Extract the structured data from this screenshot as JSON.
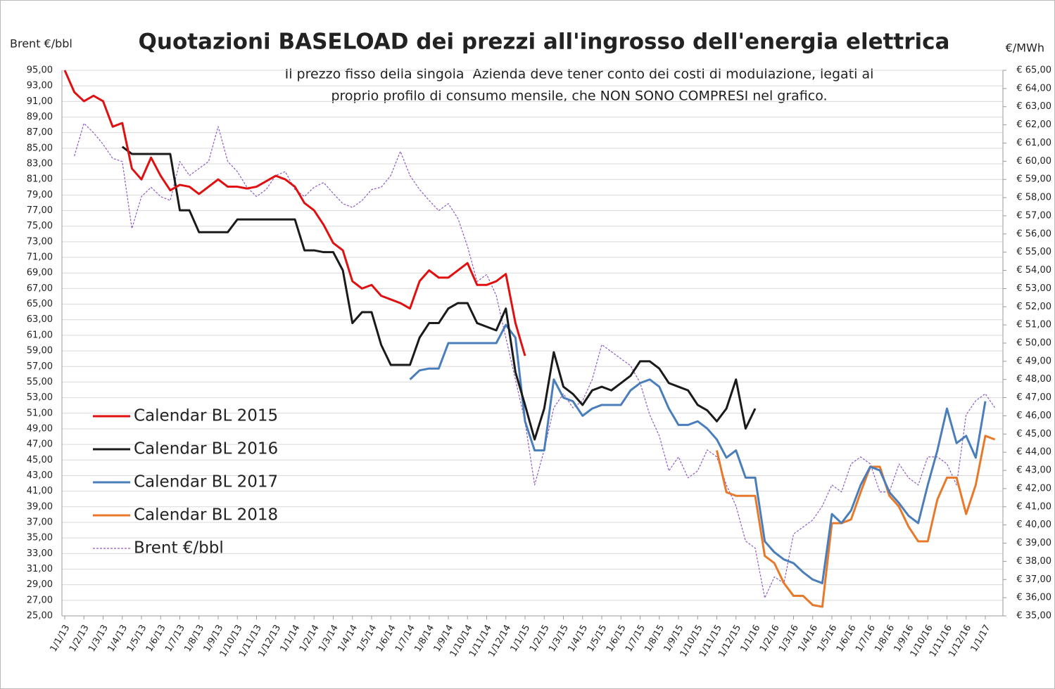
{
  "chart_data": {
    "type": "line",
    "title": "Quotazioni BASELOAD dei prezzi all'ingrosso dell'energia elettrica",
    "annotation": [
      "Il prezzo fisso della singola  Azienda deve tener conto dei costi di modulazione, legati al",
      "proprio profilo di consumo mensile, che NON SONO COMPRESI nel grafico."
    ],
    "y_label": "Brent €/bbl",
    "y2_label": "€/MWh",
    "categories": [
      "1/1/13",
      null,
      "1/2/13",
      null,
      "1/3/13",
      null,
      "1/4/13",
      null,
      "1/5/13",
      null,
      "1/6/13",
      null,
      "1/7/13",
      null,
      "1/8/13",
      null,
      "1/9/13",
      null,
      "1/10/13",
      null,
      "1/11/13",
      null,
      "1/12/13",
      null,
      "1/1/14",
      null,
      "1/2/14",
      null,
      "1/3/14",
      null,
      "1/4/14",
      null,
      "1/5/14",
      null,
      "1/6/14",
      null,
      "1/7/14",
      null,
      "1/8/14",
      null,
      "1/9/14",
      null,
      "1/10/14",
      null,
      "1/11/14",
      null,
      "1/12/14",
      null,
      "1/1/15",
      null,
      "1/2/15",
      null,
      "1/3/15",
      null,
      "1/4/15",
      null,
      "1/5/15",
      null,
      "1/6/15",
      null,
      "1/7/15",
      null,
      "1/8/15",
      null,
      "1/9/15",
      null,
      "1/10/15",
      null,
      "1/11/15",
      null,
      "1/12/15",
      null,
      "1/1/16",
      null,
      "1/2/16",
      null,
      "1/3/16",
      null,
      "1/4/16",
      null,
      "1/5/16",
      null,
      "1/6/16",
      null,
      "1/7/16",
      null,
      "1/8/16",
      null,
      "1/9/16",
      null,
      "1/10/16",
      null,
      "1/11/16",
      null,
      "1/12/16",
      null,
      "1/1/17",
      null
    ],
    "series": [
      {
        "name": "Calendar BL 2015",
        "color": "#e01010",
        "axis": "y2",
        "style": "solid",
        "values": [
          65,
          63.8,
          63.3,
          63.6,
          63.3,
          61.9,
          62.1,
          59.6,
          59,
          60.2,
          59.2,
          58.4,
          58.7,
          58.6,
          58.2,
          58.6,
          59,
          58.6,
          58.6,
          58.5,
          58.6,
          58.9,
          59.2,
          59,
          58.6,
          57.7,
          57.3,
          56.5,
          55.5,
          55.1,
          53.4,
          53,
          53.2,
          52.6,
          52.4,
          52.2,
          51.9,
          53.4,
          54,
          53.6,
          53.6,
          54,
          54.4,
          53.2,
          53.2,
          53.4,
          53.8,
          51.1,
          49.3,
          null,
          null,
          null,
          null,
          null,
          null,
          null,
          null,
          null,
          null,
          null,
          null,
          null,
          null,
          null,
          null,
          null,
          null,
          null,
          null,
          null,
          null,
          null,
          null,
          null,
          null,
          null,
          null,
          null,
          null,
          null,
          null,
          null,
          null,
          null,
          null,
          null,
          null,
          null,
          null,
          null,
          null,
          null,
          null,
          null,
          null,
          null,
          null,
          null
        ]
      },
      {
        "name": "Calendar BL 2016",
        "color": "#1a1a1a",
        "axis": "y2",
        "style": "solid",
        "values": [
          null,
          null,
          null,
          null,
          null,
          null,
          60.8,
          60.4,
          60.4,
          60.4,
          60.4,
          60.4,
          57.3,
          57.3,
          56.1,
          56.1,
          56.1,
          56.1,
          56.8,
          56.8,
          56.8,
          56.8,
          56.8,
          56.8,
          56.8,
          55.1,
          55.1,
          55,
          55,
          54,
          51.1,
          51.7,
          51.7,
          49.9,
          48.8,
          48.8,
          48.8,
          50.3,
          51.1,
          51.1,
          51.9,
          52.2,
          52.2,
          51.1,
          50.9,
          50.7,
          51.9,
          48.4,
          46.6,
          44.7,
          46.4,
          49.5,
          47.6,
          47.2,
          46.6,
          47.4,
          47.6,
          47.4,
          47.8,
          48.2,
          49,
          49,
          48.6,
          47.8,
          47.6,
          47.4,
          46.6,
          46.3,
          45.7,
          46.4,
          48,
          45.3,
          46.4,
          null,
          null,
          null,
          null,
          null,
          null,
          null,
          null,
          null,
          null,
          null,
          null,
          null,
          null,
          null,
          null,
          null,
          null,
          null,
          null,
          null,
          null,
          null,
          null,
          null
        ]
      },
      {
        "name": "Calendar BL 2017",
        "color": "#4a7ebb",
        "axis": "y2",
        "style": "solid",
        "values": [
          null,
          null,
          null,
          null,
          null,
          null,
          null,
          null,
          null,
          null,
          null,
          null,
          null,
          null,
          null,
          null,
          null,
          null,
          null,
          null,
          null,
          null,
          null,
          null,
          null,
          null,
          null,
          null,
          null,
          null,
          null,
          null,
          null,
          null,
          null,
          null,
          48,
          48.5,
          48.6,
          48.6,
          50,
          50,
          50,
          50,
          50,
          50,
          51,
          50.3,
          45.7,
          44.1,
          44.1,
          48,
          47,
          46.8,
          46,
          46.4,
          46.6,
          46.6,
          46.6,
          47.4,
          47.8,
          48,
          47.6,
          46.4,
          45.5,
          45.5,
          45.7,
          45.3,
          44.7,
          43.7,
          44.1,
          42.6,
          42.6,
          39.1,
          38.5,
          38.1,
          37.9,
          37.4,
          37,
          36.8,
          40.6,
          40.1,
          40.8,
          42.2,
          43.2,
          43,
          41.8,
          41.2,
          40.5,
          40.1,
          42.2,
          44.1,
          46.4,
          44.5,
          44.9,
          43.7,
          46.8,
          null
        ]
      },
      {
        "name": "Calendar BL 2018",
        "color": "#e8792a",
        "axis": "y2",
        "style": "solid",
        "values": [
          null,
          null,
          null,
          null,
          null,
          null,
          null,
          null,
          null,
          null,
          null,
          null,
          null,
          null,
          null,
          null,
          null,
          null,
          null,
          null,
          null,
          null,
          null,
          null,
          null,
          null,
          null,
          null,
          null,
          null,
          null,
          null,
          null,
          null,
          null,
          null,
          null,
          null,
          null,
          null,
          null,
          null,
          null,
          null,
          null,
          null,
          null,
          null,
          null,
          null,
          null,
          null,
          null,
          null,
          null,
          null,
          null,
          null,
          null,
          null,
          null,
          null,
          null,
          null,
          null,
          null,
          null,
          null,
          44.1,
          41.8,
          41.6,
          41.6,
          41.6,
          38.3,
          37.9,
          36.8,
          36.1,
          36.1,
          35.6,
          35.5,
          40.1,
          40.1,
          40.3,
          41.8,
          43.2,
          43.2,
          41.6,
          41,
          39.9,
          39.1,
          39.1,
          41.4,
          42.6,
          42.6,
          40.6,
          42.2,
          44.9,
          44.7
        ]
      },
      {
        "name": "Brent €/bbl",
        "color": "#8e5bc4",
        "axis": "y",
        "style": "dashed",
        "values": [
          null,
          84,
          88.2,
          87,
          85.5,
          83.7,
          83.3,
          74.7,
          78.8,
          80,
          78.8,
          78.3,
          83.3,
          81.5,
          82.4,
          83.3,
          87.8,
          83.3,
          82,
          80,
          78.8,
          79.7,
          81.5,
          82,
          79.7,
          78.8,
          80,
          80.6,
          79.2,
          77.9,
          77.4,
          78.3,
          79.7,
          80,
          81.5,
          84.6,
          81.5,
          79.7,
          78.3,
          77,
          77.9,
          76,
          72.4,
          67.9,
          68.8,
          66.1,
          60.7,
          55.3,
          49.9,
          41.8,
          46.3,
          51.7,
          53.5,
          51.7,
          52.6,
          55.3,
          59.8,
          58.9,
          58,
          57.1,
          54.9,
          50.8,
          48.1,
          43.6,
          45.4,
          42.7,
          43.6,
          46.3,
          45.4,
          41.8,
          39.1,
          34.6,
          33.7,
          27.3,
          30,
          29.2,
          35.5,
          36.4,
          37.3,
          39.1,
          41.8,
          40.9,
          44.5,
          45.4,
          44.5,
          40.9,
          40.9,
          44.5,
          42.7,
          41.8,
          45.4,
          45.4,
          44.5,
          41.8,
          50.8,
          52.6,
          53.5,
          51.7
        ]
      }
    ],
    "ylim": [
      25,
      95
    ],
    "yticks": [
      {
        "value": 25,
        "label": "25,00"
      },
      {
        "value": 27,
        "label": "27,00"
      },
      {
        "value": 29,
        "label": "29,00"
      },
      {
        "value": 31,
        "label": "31,00"
      },
      {
        "value": 33,
        "label": "33,00"
      },
      {
        "value": 35,
        "label": "35,00"
      },
      {
        "value": 37,
        "label": "37,00"
      },
      {
        "value": 39,
        "label": "39,00"
      },
      {
        "value": 41,
        "label": "41,00"
      },
      {
        "value": 43,
        "label": "43,00"
      },
      {
        "value": 45,
        "label": "45,00"
      },
      {
        "value": 47,
        "label": "47,00"
      },
      {
        "value": 49,
        "label": "49,00"
      },
      {
        "value": 51,
        "label": "51,00"
      },
      {
        "value": 53,
        "label": "53,00"
      },
      {
        "value": 55,
        "label": "55,00"
      },
      {
        "value": 57,
        "label": "57,00"
      },
      {
        "value": 59,
        "label": "59,00"
      },
      {
        "value": 61,
        "label": "61,00"
      },
      {
        "value": 63,
        "label": "63,00"
      },
      {
        "value": 65,
        "label": "65,00"
      },
      {
        "value": 67,
        "label": "67,00"
      },
      {
        "value": 69,
        "label": "69,00"
      },
      {
        "value": 71,
        "label": "71,00"
      },
      {
        "value": 73,
        "label": "73,00"
      },
      {
        "value": 75,
        "label": "75,00"
      },
      {
        "value": 77,
        "label": "77,00"
      },
      {
        "value": 79,
        "label": "79,00"
      },
      {
        "value": 81,
        "label": "81,00"
      },
      {
        "value": 83,
        "label": "83,00"
      },
      {
        "value": 85,
        "label": "85,00"
      },
      {
        "value": 87,
        "label": "87,00"
      },
      {
        "value": 89,
        "label": "89,00"
      },
      {
        "value": 91,
        "label": "91,00"
      },
      {
        "value": 93,
        "label": "93,00"
      },
      {
        "value": 95,
        "label": "95,00"
      }
    ],
    "y2lim": [
      35,
      65
    ],
    "y2ticks": [
      {
        "value": 35,
        "label": "€ 35,00"
      },
      {
        "value": 36,
        "label": "€ 36,00"
      },
      {
        "value": 37,
        "label": "€ 37,00"
      },
      {
        "value": 38,
        "label": "€ 38,00"
      },
      {
        "value": 39,
        "label": "€ 39,00"
      },
      {
        "value": 40,
        "label": "€ 40,00"
      },
      {
        "value": 41,
        "label": "€ 41,00"
      },
      {
        "value": 42,
        "label": "€ 42,00"
      },
      {
        "value": 43,
        "label": "€ 43,00"
      },
      {
        "value": 44,
        "label": "€ 44,00"
      },
      {
        "value": 45,
        "label": "€ 45,00"
      },
      {
        "value": 46,
        "label": "€ 46,00"
      },
      {
        "value": 47,
        "label": "€ 47,00"
      },
      {
        "value": 48,
        "label": "€ 48,00"
      },
      {
        "value": 49,
        "label": "€ 49,00"
      },
      {
        "value": 50,
        "label": "€ 50,00"
      },
      {
        "value": 51,
        "label": "€ 51,00"
      },
      {
        "value": 52,
        "label": "€ 52,00"
      },
      {
        "value": 53,
        "label": "€ 53,00"
      },
      {
        "value": 54,
        "label": "€ 54,00"
      },
      {
        "value": 55,
        "label": "€ 55,00"
      },
      {
        "value": 56,
        "label": "€ 56,00"
      },
      {
        "value": 57,
        "label": "€ 57,00"
      },
      {
        "value": 58,
        "label": "€ 58,00"
      },
      {
        "value": 59,
        "label": "€ 59,00"
      },
      {
        "value": 60,
        "label": "€ 60,00"
      },
      {
        "value": 61,
        "label": "€ 61,00"
      },
      {
        "value": 62,
        "label": "€ 62,00"
      },
      {
        "value": 63,
        "label": "€ 63,00"
      },
      {
        "value": 64,
        "label": "€ 64,00"
      },
      {
        "value": 65,
        "label": "€ 65,00"
      }
    ],
    "grid": true,
    "legend": "lower left"
  }
}
